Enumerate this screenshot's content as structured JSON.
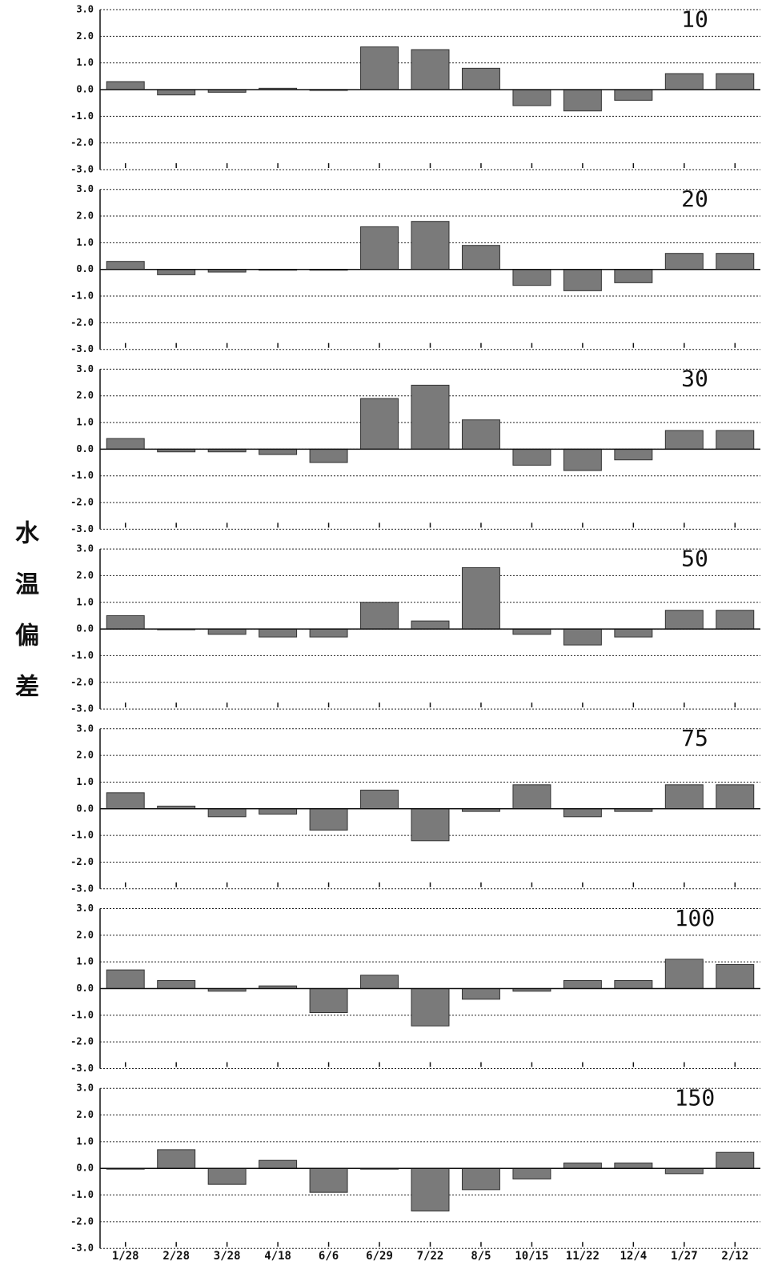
{
  "chart_data": {
    "type": "bar",
    "ylabel": "水温偏差",
    "categories": [
      "1/28",
      "2/28",
      "3/28",
      "4/18",
      "6/6",
      "6/29",
      "7/22",
      "8/5",
      "10/15",
      "11/22",
      "12/4",
      "1/27",
      "2/12"
    ],
    "color": "#7a7a7a",
    "ylim": [
      -3,
      3
    ],
    "yticks": [
      {
        "value": 3,
        "label": "3.0"
      },
      {
        "value": 2,
        "label": "2.0"
      },
      {
        "value": 1,
        "label": "1.0"
      },
      {
        "value": 0,
        "label": "0.0"
      },
      {
        "value": -1,
        "label": "-1.0"
      },
      {
        "value": -2,
        "label": "-2.0"
      },
      {
        "value": -3,
        "label": "-3.0"
      }
    ],
    "grid": true,
    "panels": [
      {
        "title": "10",
        "values": [
          0.3,
          -0.2,
          -0.1,
          0.05,
          0.0,
          1.6,
          1.5,
          0.8,
          -0.6,
          -0.8,
          -0.4,
          0.6,
          0.6
        ]
      },
      {
        "title": "20",
        "values": [
          0.3,
          -0.2,
          -0.1,
          0.0,
          0.0,
          1.6,
          1.8,
          0.9,
          -0.6,
          -0.8,
          -0.5,
          0.6,
          0.6
        ]
      },
      {
        "title": "30",
        "values": [
          0.4,
          -0.1,
          -0.1,
          -0.2,
          -0.5,
          1.9,
          2.4,
          1.1,
          -0.6,
          -0.8,
          -0.4,
          0.7,
          0.7
        ]
      },
      {
        "title": "50",
        "values": [
          0.5,
          0.0,
          -0.2,
          -0.3,
          -0.3,
          1.0,
          0.3,
          2.3,
          -0.2,
          -0.6,
          -0.3,
          0.7,
          0.7
        ]
      },
      {
        "title": "75",
        "values": [
          0.6,
          0.1,
          -0.3,
          -0.2,
          -0.8,
          0.7,
          -1.2,
          -0.1,
          0.9,
          -0.3,
          -0.1,
          0.9,
          0.9
        ]
      },
      {
        "title": "100",
        "values": [
          0.7,
          0.3,
          -0.1,
          0.1,
          -0.9,
          0.5,
          -1.4,
          -0.4,
          -0.1,
          0.3,
          0.3,
          1.1,
          0.9
        ]
      },
      {
        "title": "150",
        "values": [
          0.0,
          0.7,
          -0.6,
          0.3,
          -0.9,
          0.0,
          -1.6,
          -0.8,
          -0.4,
          0.2,
          0.2,
          -0.2,
          0.6
        ]
      }
    ]
  }
}
